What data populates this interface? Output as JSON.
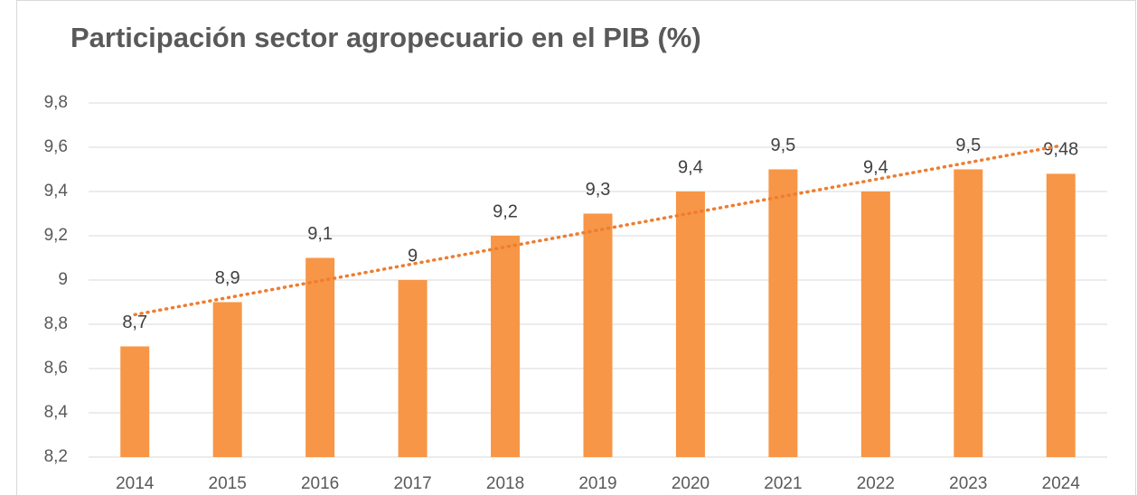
{
  "chart_data": {
    "type": "bar",
    "title": "Participación sector agropecuario en el PIB (%)",
    "categories": [
      "2014",
      "2015",
      "2016",
      "2017",
      "2018",
      "2019",
      "2020",
      "2021",
      "2022",
      "2023",
      "2024"
    ],
    "values": [
      8.7,
      8.9,
      9.1,
      9,
      9.2,
      9.3,
      9.4,
      9.5,
      9.4,
      9.5,
      9.48
    ],
    "value_labels": [
      "8,7",
      "8,9",
      "9,1",
      "9",
      "9,2",
      "9,3",
      "9,4",
      "9,5",
      "9,4",
      "9,5",
      "9,48"
    ],
    "color": "#f79646",
    "ylim": [
      8.2,
      9.8
    ],
    "yticks": [
      {
        "value": 8.2,
        "label": "8,2"
      },
      {
        "value": 8.4,
        "label": "8,4"
      },
      {
        "value": 8.6,
        "label": "8,6"
      },
      {
        "value": 8.8,
        "label": "8,8"
      },
      9,
      {
        "value": 9.2,
        "label": "9,2"
      },
      {
        "value": 9.4,
        "label": "9,4"
      },
      {
        "value": 9.6,
        "label": "9,6"
      },
      {
        "value": 9.8,
        "label": "9,8"
      }
    ],
    "grid": true,
    "trendline": "linear"
  }
}
